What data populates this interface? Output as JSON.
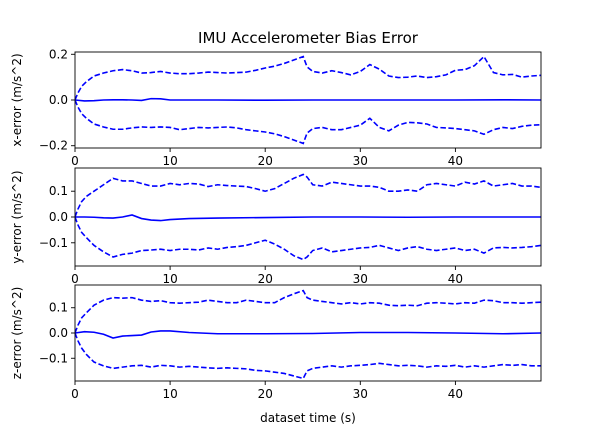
{
  "chart_data": {
    "type": "line",
    "title": "IMU Accelerometer Bias Error",
    "xlabel": "dataset time (s)",
    "xlim": [
      0,
      49
    ],
    "xticks": [
      0,
      10,
      20,
      30,
      40
    ],
    "colors": {
      "series": "#0000ff",
      "axes": "#000000",
      "background": "#ffffff"
    },
    "subplots": [
      {
        "ylabel": "x-error (m/s^2)",
        "ylim": [
          -0.21,
          0.21
        ],
        "yticks": [
          -0.2,
          0.0,
          0.2
        ],
        "ytick_labels": [
          "−0.2",
          "0.0",
          "0.2"
        ],
        "series": [
          {
            "style": "solid",
            "x": [
              0,
              1,
              2,
              3,
              4,
              5,
              6,
              7,
              8,
              9,
              10,
              12,
              15,
              20,
              25,
              30,
              35,
              40,
              45,
              49
            ],
            "y": [
              0.0,
              -0.004,
              -0.003,
              0.0,
              0.001,
              0.001,
              0.0,
              -0.002,
              0.006,
              0.005,
              0.0,
              0.0,
              0.0,
              -0.001,
              0.0,
              0.0,
              0.0,
              0.0,
              0.001,
              0.0
            ]
          },
          {
            "style": "dashed",
            "x": [
              0,
              0.3,
              0.7,
              1.2,
              2,
              3,
              4,
              5,
              6,
              7,
              8,
              9,
              10,
              11,
              12,
              13,
              14,
              15,
              16,
              17,
              18,
              19,
              20,
              21,
              22,
              23,
              24,
              24.4,
              25,
              26,
              27,
              28,
              29,
              30,
              31,
              32,
              33,
              34,
              35,
              36,
              37,
              38,
              39,
              40,
              41,
              42,
              43,
              44,
              45,
              46,
              47,
              48,
              49
            ],
            "y": [
              0.0,
              0.03,
              0.06,
              0.08,
              0.105,
              0.118,
              0.128,
              0.133,
              0.128,
              0.118,
              0.12,
              0.125,
              0.118,
              0.115,
              0.115,
              0.118,
              0.122,
              0.12,
              0.118,
              0.12,
              0.122,
              0.13,
              0.14,
              0.148,
              0.16,
              0.175,
              0.19,
              0.145,
              0.125,
              0.118,
              0.128,
              0.12,
              0.11,
              0.125,
              0.155,
              0.135,
              0.105,
              0.098,
              0.1,
              0.105,
              0.098,
              0.102,
              0.11,
              0.13,
              0.133,
              0.15,
              0.19,
              0.12,
              0.11,
              0.112,
              0.1,
              0.105,
              0.108
            ]
          },
          {
            "style": "dashed",
            "x": [
              0,
              0.3,
              0.7,
              1.2,
              2,
              3,
              4,
              5,
              6,
              7,
              8,
              9,
              10,
              11,
              12,
              13,
              14,
              15,
              16,
              17,
              18,
              19,
              20,
              21,
              22,
              23,
              24,
              24.4,
              25,
              26,
              27,
              28,
              29,
              30,
              31,
              32,
              33,
              34,
              35,
              36,
              37,
              38,
              39,
              40,
              41,
              42,
              43,
              44,
              45,
              46,
              47,
              48,
              49
            ],
            "y": [
              0.0,
              -0.03,
              -0.06,
              -0.08,
              -0.105,
              -0.118,
              -0.128,
              -0.128,
              -0.122,
              -0.118,
              -0.12,
              -0.118,
              -0.12,
              -0.13,
              -0.125,
              -0.12,
              -0.122,
              -0.12,
              -0.118,
              -0.122,
              -0.13,
              -0.135,
              -0.14,
              -0.148,
              -0.16,
              -0.175,
              -0.19,
              -0.145,
              -0.125,
              -0.12,
              -0.13,
              -0.13,
              -0.12,
              -0.11,
              -0.08,
              -0.12,
              -0.135,
              -0.11,
              -0.098,
              -0.1,
              -0.105,
              -0.12,
              -0.122,
              -0.125,
              -0.13,
              -0.135,
              -0.15,
              -0.13,
              -0.12,
              -0.125,
              -0.115,
              -0.11,
              -0.108
            ]
          }
        ]
      },
      {
        "ylabel": "y-error (m/s^2)",
        "ylim": [
          -0.19,
          0.19
        ],
        "yticks": [
          -0.1,
          0.0,
          0.1
        ],
        "ytick_labels": [
          "−0.1",
          "0.0",
          "0.1"
        ],
        "series": [
          {
            "style": "solid",
            "x": [
              0,
              1,
              2,
              3,
              4,
              5,
              6,
              7,
              8,
              9,
              10,
              12,
              15,
              20,
              25,
              30,
              35,
              40,
              45,
              49
            ],
            "y": [
              0.0,
              0.0,
              -0.001,
              -0.003,
              -0.004,
              0.0,
              0.008,
              -0.006,
              -0.012,
              -0.014,
              -0.01,
              -0.006,
              -0.004,
              -0.002,
              0.0,
              0.0,
              -0.001,
              0.0,
              0.0,
              0.0
            ]
          },
          {
            "style": "dashed",
            "x": [
              0,
              0.3,
              0.7,
              1.2,
              2,
              3,
              4,
              5,
              6,
              7,
              8,
              9,
              10,
              11,
              12,
              13,
              14,
              15,
              16,
              17,
              18,
              19,
              20,
              21,
              22,
              23,
              24,
              24.4,
              25,
              26,
              27,
              28,
              29,
              30,
              31,
              32,
              33,
              34,
              35,
              36,
              37,
              38,
              39,
              40,
              41,
              42,
              43,
              44,
              45,
              46,
              47,
              48,
              49
            ],
            "y": [
              0.0,
              0.03,
              0.06,
              0.08,
              0.1,
              0.125,
              0.15,
              0.14,
              0.14,
              0.13,
              0.12,
              0.12,
              0.13,
              0.125,
              0.13,
              0.128,
              0.118,
              0.125,
              0.122,
              0.12,
              0.118,
              0.11,
              0.1,
              0.11,
              0.13,
              0.15,
              0.165,
              0.155,
              0.125,
              0.12,
              0.135,
              0.13,
              0.125,
              0.12,
              0.12,
              0.115,
              0.1,
              0.1,
              0.105,
              0.1,
              0.125,
              0.13,
              0.125,
              0.12,
              0.135,
              0.128,
              0.14,
              0.12,
              0.125,
              0.13,
              0.12,
              0.12,
              0.115
            ]
          },
          {
            "style": "dashed",
            "x": [
              0,
              0.3,
              0.7,
              1.2,
              2,
              3,
              4,
              5,
              6,
              7,
              8,
              9,
              10,
              11,
              12,
              13,
              14,
              15,
              16,
              17,
              18,
              19,
              20,
              21,
              22,
              23,
              24,
              24.4,
              25,
              26,
              27,
              28,
              29,
              30,
              31,
              32,
              33,
              34,
              35,
              36,
              37,
              38,
              39,
              40,
              41,
              42,
              43,
              44,
              45,
              46,
              47,
              48,
              49
            ],
            "y": [
              0.0,
              -0.03,
              -0.06,
              -0.08,
              -0.11,
              -0.135,
              -0.155,
              -0.145,
              -0.14,
              -0.13,
              -0.128,
              -0.125,
              -0.13,
              -0.125,
              -0.125,
              -0.128,
              -0.12,
              -0.125,
              -0.118,
              -0.115,
              -0.11,
              -0.1,
              -0.09,
              -0.105,
              -0.125,
              -0.15,
              -0.165,
              -0.155,
              -0.13,
              -0.12,
              -0.135,
              -0.13,
              -0.125,
              -0.12,
              -0.118,
              -0.11,
              -0.12,
              -0.13,
              -0.12,
              -0.115,
              -0.125,
              -0.13,
              -0.125,
              -0.12,
              -0.13,
              -0.125,
              -0.14,
              -0.12,
              -0.118,
              -0.12,
              -0.118,
              -0.115,
              -0.11
            ]
          }
        ]
      },
      {
        "ylabel": "z-error (m/s^2)",
        "ylim": [
          -0.19,
          0.19
        ],
        "yticks": [
          -0.1,
          0.0,
          0.1
        ],
        "ytick_labels": [
          "−0.1",
          "0.0",
          "0.1"
        ],
        "series": [
          {
            "style": "solid",
            "x": [
              0,
              1,
              2,
              3,
              4,
              5,
              6,
              7,
              8,
              9,
              10,
              12,
              15,
              20,
              25,
              30,
              35,
              40,
              45,
              49
            ],
            "y": [
              0.0,
              0.005,
              0.003,
              -0.005,
              -0.02,
              -0.012,
              -0.01,
              -0.008,
              0.004,
              0.008,
              0.008,
              0.002,
              -0.003,
              -0.003,
              -0.002,
              0.002,
              0.002,
              0.0,
              -0.003,
              0.0
            ]
          },
          {
            "style": "dashed",
            "x": [
              0,
              0.3,
              0.7,
              1.2,
              2,
              3,
              4,
              5,
              6,
              7,
              8,
              9,
              10,
              11,
              12,
              13,
              14,
              15,
              16,
              17,
              18,
              19,
              20,
              21,
              22,
              23,
              24,
              24.4,
              25,
              26,
              27,
              28,
              29,
              30,
              31,
              32,
              33,
              34,
              35,
              36,
              37,
              38,
              39,
              40,
              41,
              42,
              43,
              44,
              45,
              46,
              47,
              48,
              49
            ],
            "y": [
              0.0,
              0.03,
              0.06,
              0.08,
              0.11,
              0.13,
              0.14,
              0.138,
              0.14,
              0.13,
              0.125,
              0.128,
              0.12,
              0.118,
              0.12,
              0.122,
              0.13,
              0.125,
              0.12,
              0.12,
              0.13,
              0.125,
              0.12,
              0.12,
              0.14,
              0.155,
              0.168,
              0.14,
              0.13,
              0.125,
              0.12,
              0.115,
              0.12,
              0.115,
              0.12,
              0.118,
              0.11,
              0.108,
              0.11,
              0.108,
              0.118,
              0.12,
              0.118,
              0.115,
              0.12,
              0.118,
              0.13,
              0.128,
              0.12,
              0.12,
              0.118,
              0.12,
              0.122
            ]
          },
          {
            "style": "dashed",
            "x": [
              0,
              0.3,
              0.7,
              1.2,
              2,
              3,
              4,
              5,
              6,
              7,
              8,
              9,
              10,
              11,
              12,
              13,
              14,
              15,
              16,
              17,
              18,
              19,
              20,
              21,
              22,
              23,
              24,
              24.4,
              25,
              26,
              27,
              28,
              29,
              30,
              31,
              32,
              33,
              34,
              35,
              36,
              37,
              38,
              39,
              40,
              41,
              42,
              43,
              44,
              45,
              46,
              47,
              48,
              49
            ],
            "y": [
              0.0,
              -0.03,
              -0.06,
              -0.085,
              -0.115,
              -0.13,
              -0.14,
              -0.135,
              -0.13,
              -0.128,
              -0.135,
              -0.128,
              -0.13,
              -0.135,
              -0.132,
              -0.135,
              -0.138,
              -0.14,
              -0.138,
              -0.14,
              -0.142,
              -0.148,
              -0.15,
              -0.155,
              -0.16,
              -0.17,
              -0.18,
              -0.15,
              -0.14,
              -0.135,
              -0.13,
              -0.135,
              -0.13,
              -0.128,
              -0.125,
              -0.12,
              -0.125,
              -0.13,
              -0.128,
              -0.13,
              -0.135,
              -0.13,
              -0.132,
              -0.128,
              -0.135,
              -0.13,
              -0.135,
              -0.13,
              -0.125,
              -0.128,
              -0.125,
              -0.13,
              -0.13
            ]
          }
        ]
      }
    ]
  }
}
